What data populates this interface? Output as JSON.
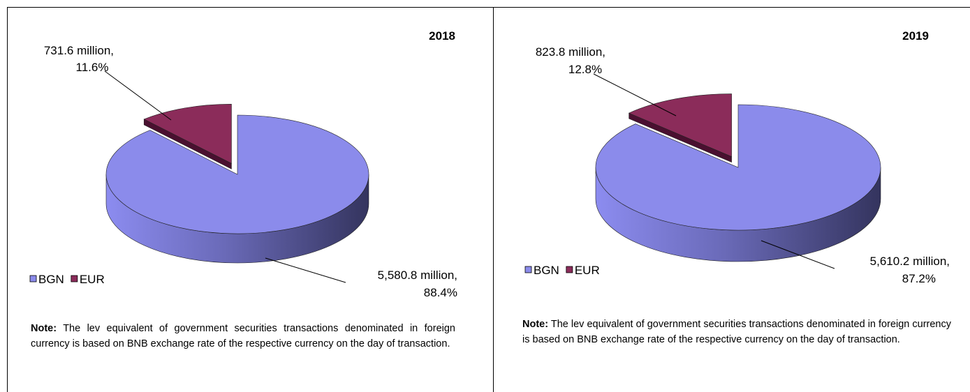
{
  "chart_data": [
    {
      "type": "pie",
      "title": "2018",
      "categories": [
        "BGN",
        "EUR"
      ],
      "colors": [
        "#8b8beb",
        "#8b2c5a"
      ],
      "values": [
        88.4,
        11.6
      ],
      "value_labels": [
        "88.4%",
        "11.6%"
      ],
      "amounts": [
        5580.8,
        731.6
      ],
      "amount_labels": [
        "5,580.8 million,",
        "731.6 million,"
      ],
      "note_label": "Note:",
      "note": "The lev equivalent of government securities transactions denominated in foreign currency is based on BNB exchange rate of the respective currency on the day of transaction."
    },
    {
      "type": "pie",
      "title": "2019",
      "categories": [
        "BGN",
        "EUR"
      ],
      "colors": [
        "#8b8beb",
        "#8b2c5a"
      ],
      "values": [
        87.2,
        12.8
      ],
      "value_labels": [
        "87.2%",
        "12.8%"
      ],
      "amounts": [
        5610.2,
        823.8
      ],
      "amount_labels": [
        "5,610.2 million,",
        "823.8 million,"
      ],
      "note_label": "Note:",
      "note": "The lev equivalent of government securities transactions denominated in foreign currency is based on BNB exchange rate of the respective currency on the day of transaction."
    }
  ]
}
